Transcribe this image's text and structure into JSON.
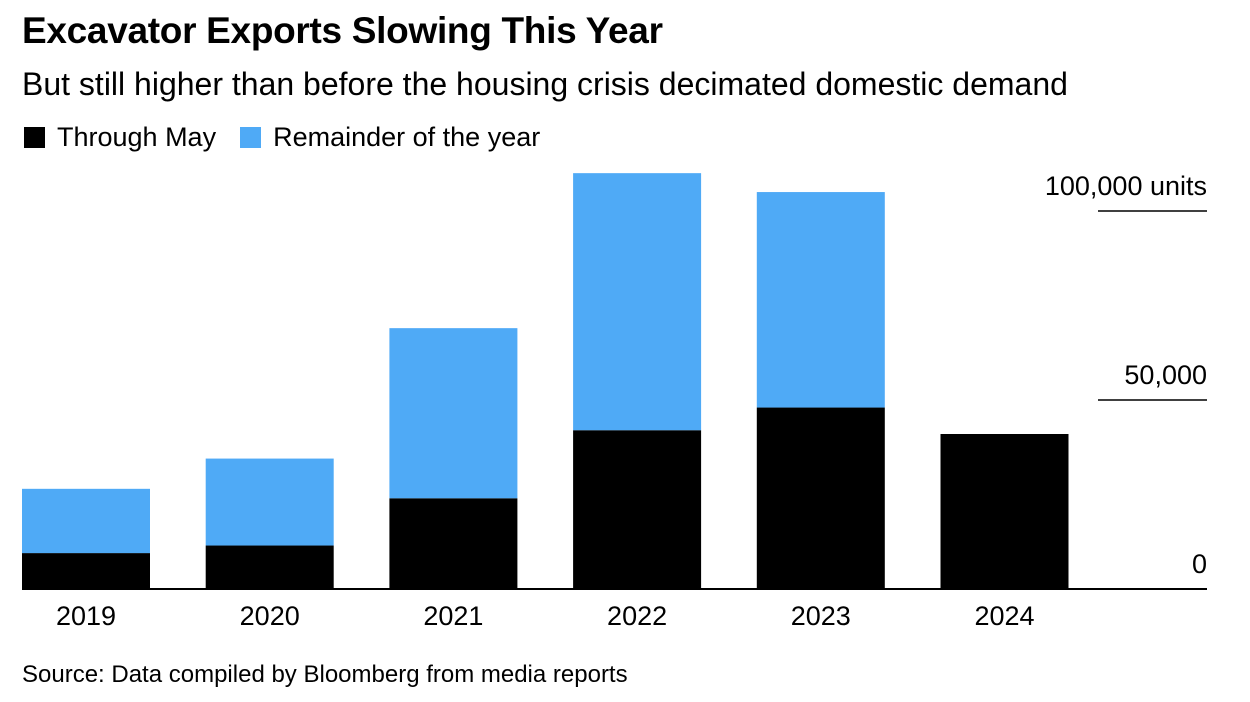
{
  "header": {
    "title": "Excavator Exports Slowing This Year",
    "subtitle": "But still higher than before the housing crisis decimated domestic demand"
  },
  "legend": {
    "items": [
      {
        "label": "Through May",
        "color": "#000000"
      },
      {
        "label": "Remainder of the year",
        "color": "#4faaf6"
      }
    ]
  },
  "footer": {
    "source": "Source: Data compiled by Bloomberg from media reports"
  },
  "chart_data": {
    "type": "bar",
    "stacked": true,
    "categories": [
      "2019",
      "2020",
      "2021",
      "2022",
      "2023",
      "2024"
    ],
    "series": [
      {
        "name": "Through May",
        "color": "#000000",
        "values": [
          9500,
          11500,
          24000,
          42000,
          48000,
          41000
        ]
      },
      {
        "name": "Remainder of the year",
        "color": "#4faaf6",
        "values": [
          17000,
          23000,
          45000,
          68000,
          57000,
          0
        ]
      }
    ],
    "ylim": [
      0,
      110000
    ],
    "yticks": [
      {
        "value": 0,
        "label": "0"
      },
      {
        "value": 50000,
        "label": "50,000"
      },
      {
        "value": 100000,
        "label": "100,000 units"
      }
    ],
    "axis_position": "right",
    "grid": false,
    "legend_position": "top-left"
  }
}
